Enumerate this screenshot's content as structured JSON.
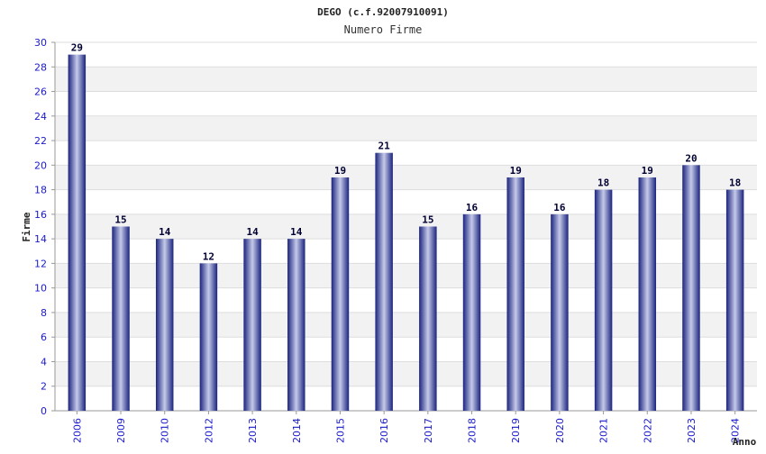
{
  "chart_data": {
    "type": "bar",
    "title": "DEGO (c.f.92007910091)",
    "subtitle": "Numero Firme",
    "ylabel": "Firme",
    "xlabel": "Anno",
    "categories": [
      "2006",
      "2009",
      "2010",
      "2012",
      "2013",
      "2014",
      "2015",
      "2016",
      "2017",
      "2018",
      "2019",
      "2020",
      "2021",
      "2022",
      "2023",
      "2024"
    ],
    "values": [
      29,
      15,
      14,
      12,
      14,
      14,
      19,
      21,
      15,
      16,
      19,
      16,
      18,
      19,
      20,
      18
    ],
    "ylim": [
      0,
      30
    ],
    "yticks": [
      0,
      2,
      4,
      6,
      8,
      10,
      12,
      14,
      16,
      18,
      20,
      22,
      24,
      26,
      28,
      30
    ],
    "grid": true,
    "bar_color": "#1a237e",
    "bar_highlight": "#c5cae9",
    "tick_color": "#1a1acc"
  }
}
